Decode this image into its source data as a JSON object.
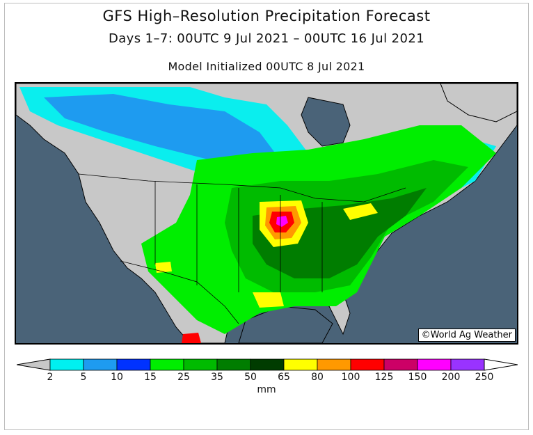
{
  "header": {
    "title": "GFS High–Resolution Precipitation Forecast",
    "subtitle": "Days 1–7: 00UTC 9 Jul 2021 – 00UTC 16 Jul 2021",
    "init": "Model Initialized 00UTC 8 Jul 2021"
  },
  "map": {
    "region": "North America",
    "credit": "©World Ag Weather",
    "ocean_color": "#4a6378",
    "land_color": "#c8c8c8"
  },
  "legend": {
    "unit": "mm",
    "ticks": [
      "2",
      "5",
      "10",
      "15",
      "25",
      "35",
      "50",
      "65",
      "80",
      "100",
      "125",
      "150",
      "200",
      "250"
    ],
    "colors": [
      "#00f0f0",
      "#1e9bf0",
      "#0032ff",
      "#00ee00",
      "#00bb00",
      "#007d00",
      "#003c00",
      "#ffff00",
      "#ff9900",
      "#ff0000",
      "#cc0066",
      "#ff00ff",
      "#9933ff"
    ],
    "below_color": "#c8c8c8",
    "above_color": "#ffffff"
  }
}
